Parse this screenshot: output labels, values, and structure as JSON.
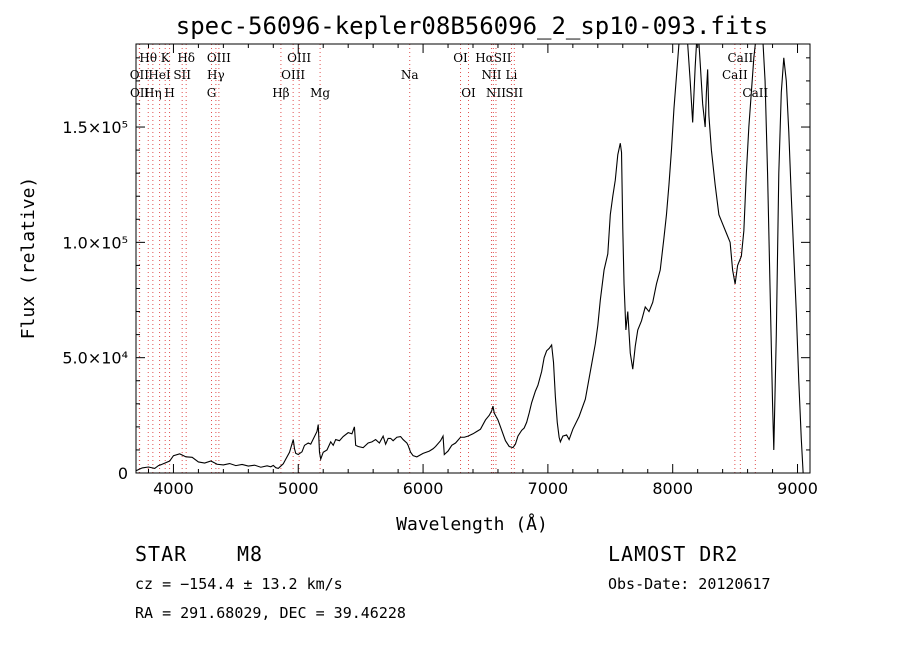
{
  "chart_data": {
    "type": "line",
    "title": "spec-56096-kepler08B56096_2_sp10-093.fits",
    "xlabel": "Wavelength (Å)",
    "ylabel": "Flux (relative)",
    "xlim": [
      3700,
      9100
    ],
    "ylim": [
      0,
      186000
    ],
    "x_ticks": [
      {
        "value": 4000,
        "label": "4000"
      },
      {
        "value": 5000,
        "label": "5000"
      },
      {
        "value": 6000,
        "label": "6000"
      },
      {
        "value": 7000,
        "label": "7000"
      },
      {
        "value": 8000,
        "label": "8000"
      },
      {
        "value": 9000,
        "label": "9000"
      }
    ],
    "y_ticks": [
      {
        "value": 0,
        "label": "0"
      },
      {
        "value": 50000,
        "label": "5.0×10⁴"
      },
      {
        "value": 100000,
        "label": "1.0×10⁵"
      },
      {
        "value": 150000,
        "label": "1.5×10⁵"
      }
    ],
    "grid": false,
    "series": [
      {
        "points": [
          [
            3700,
            1000
          ],
          [
            3750,
            2200
          ],
          [
            3800,
            2600
          ],
          [
            3850,
            2000
          ],
          [
            3880,
            3200
          ],
          [
            3900,
            3600
          ],
          [
            3940,
            4500
          ],
          [
            3970,
            5200
          ],
          [
            4000,
            7500
          ],
          [
            4050,
            8300
          ],
          [
            4100,
            7000
          ],
          [
            4150,
            6800
          ],
          [
            4200,
            4800
          ],
          [
            4250,
            4300
          ],
          [
            4300,
            5200
          ],
          [
            4350,
            3800
          ],
          [
            4400,
            3500
          ],
          [
            4450,
            4100
          ],
          [
            4500,
            3200
          ],
          [
            4550,
            3700
          ],
          [
            4600,
            3000
          ],
          [
            4650,
            3400
          ],
          [
            4700,
            2500
          ],
          [
            4750,
            3100
          ],
          [
            4780,
            2700
          ],
          [
            4800,
            3300
          ],
          [
            4820,
            2300
          ],
          [
            4840,
            2000
          ],
          [
            4860,
            3000
          ],
          [
            4880,
            4000
          ],
          [
            4900,
            6000
          ],
          [
            4930,
            9000
          ],
          [
            4960,
            14500
          ],
          [
            4970,
            10500
          ],
          [
            4980,
            8500
          ],
          [
            5000,
            8000
          ],
          [
            5030,
            9200
          ],
          [
            5050,
            12000
          ],
          [
            5080,
            13000
          ],
          [
            5100,
            12500
          ],
          [
            5150,
            18000
          ],
          [
            5160,
            21000
          ],
          [
            5170,
            9000
          ],
          [
            5180,
            6000
          ],
          [
            5200,
            9000
          ],
          [
            5230,
            10000
          ],
          [
            5260,
            13500
          ],
          [
            5280,
            12000
          ],
          [
            5300,
            14500
          ],
          [
            5330,
            14000
          ],
          [
            5360,
            15800
          ],
          [
            5400,
            17500
          ],
          [
            5430,
            17000
          ],
          [
            5450,
            20000
          ],
          [
            5460,
            12000
          ],
          [
            5480,
            11500
          ],
          [
            5520,
            11000
          ],
          [
            5560,
            13000
          ],
          [
            5590,
            13500
          ],
          [
            5620,
            14500
          ],
          [
            5650,
            13000
          ],
          [
            5680,
            16000
          ],
          [
            5700,
            12500
          ],
          [
            5720,
            15000
          ],
          [
            5740,
            15000
          ],
          [
            5760,
            14000
          ],
          [
            5790,
            15500
          ],
          [
            5820,
            15800
          ],
          [
            5840,
            14500
          ],
          [
            5870,
            13000
          ],
          [
            5880,
            12000
          ],
          [
            5900,
            9000
          ],
          [
            5920,
            7500
          ],
          [
            5950,
            7000
          ],
          [
            6000,
            8500
          ],
          [
            6050,
            9500
          ],
          [
            6080,
            10500
          ],
          [
            6100,
            11500
          ],
          [
            6140,
            14000
          ],
          [
            6160,
            16000
          ],
          [
            6170,
            8000
          ],
          [
            6180,
            8500
          ],
          [
            6200,
            9500
          ],
          [
            6230,
            12000
          ],
          [
            6260,
            13000
          ],
          [
            6300,
            15500
          ],
          [
            6330,
            15500
          ],
          [
            6360,
            16000
          ],
          [
            6400,
            17000
          ],
          [
            6430,
            18000
          ],
          [
            6460,
            19000
          ],
          [
            6500,
            23000
          ],
          [
            6530,
            25000
          ],
          [
            6550,
            27000
          ],
          [
            6560,
            29000
          ],
          [
            6570,
            26000
          ],
          [
            6600,
            23000
          ],
          [
            6620,
            20000
          ],
          [
            6640,
            17000
          ],
          [
            6660,
            14000
          ],
          [
            6690,
            11500
          ],
          [
            6720,
            11000
          ],
          [
            6740,
            12500
          ],
          [
            6760,
            16000
          ],
          [
            6790,
            18500
          ],
          [
            6810,
            19500
          ],
          [
            6830,
            22000
          ],
          [
            6850,
            26000
          ],
          [
            6870,
            30500
          ],
          [
            6900,
            35500
          ],
          [
            6920,
            38000
          ],
          [
            6950,
            44000
          ],
          [
            6970,
            50000
          ],
          [
            6990,
            53000
          ],
          [
            7010,
            54000
          ],
          [
            7030,
            55500
          ],
          [
            7045,
            48000
          ],
          [
            7060,
            33000
          ],
          [
            7075,
            22000
          ],
          [
            7090,
            15500
          ],
          [
            7100,
            13500
          ],
          [
            7120,
            16000
          ],
          [
            7150,
            16500
          ],
          [
            7170,
            14500
          ],
          [
            7200,
            19000
          ],
          [
            7250,
            24500
          ],
          [
            7300,
            32000
          ],
          [
            7350,
            47000
          ],
          [
            7380,
            56000
          ],
          [
            7400,
            64000
          ],
          [
            7420,
            75000
          ],
          [
            7450,
            88000
          ],
          [
            7480,
            95000
          ],
          [
            7500,
            112000
          ],
          [
            7520,
            120000
          ],
          [
            7540,
            127000
          ],
          [
            7560,
            138000
          ],
          [
            7580,
            143000
          ],
          [
            7590,
            139000
          ],
          [
            7600,
            106000
          ],
          [
            7610,
            82000
          ],
          [
            7625,
            62000
          ],
          [
            7640,
            70000
          ],
          [
            7660,
            52000
          ],
          [
            7680,
            45000
          ],
          [
            7700,
            55000
          ],
          [
            7720,
            62000
          ],
          [
            7750,
            66000
          ],
          [
            7780,
            72000
          ],
          [
            7810,
            70000
          ],
          [
            7840,
            74000
          ],
          [
            7870,
            82000
          ],
          [
            7900,
            88000
          ],
          [
            7930,
            102000
          ],
          [
            7950,
            112000
          ],
          [
            7970,
            125000
          ],
          [
            7990,
            140000
          ],
          [
            8010,
            158000
          ],
          [
            8030,
            172000
          ],
          [
            8050,
            186000
          ],
          [
            8070,
            192000
          ],
          [
            8090,
            196000
          ],
          [
            8100,
            200000
          ],
          [
            8120,
            186000
          ],
          [
            8140,
            170000
          ],
          [
            8160,
            152000
          ],
          [
            8180,
            176000
          ],
          [
            8200,
            195000
          ],
          [
            8220,
            178000
          ],
          [
            8240,
            160000
          ],
          [
            8260,
            150000
          ],
          [
            8270,
            165000
          ],
          [
            8280,
            175000
          ],
          [
            8290,
            155000
          ],
          [
            8310,
            140000
          ],
          [
            8340,
            125000
          ],
          [
            8370,
            112000
          ],
          [
            8400,
            108000
          ],
          [
            8430,
            104000
          ],
          [
            8460,
            100000
          ],
          [
            8480,
            88000
          ],
          [
            8500,
            82000
          ],
          [
            8520,
            90000
          ],
          [
            8550,
            94000
          ],
          [
            8570,
            105000
          ],
          [
            8590,
            130000
          ],
          [
            8610,
            150000
          ],
          [
            8630,
            165000
          ],
          [
            8650,
            180000
          ],
          [
            8670,
            190000
          ],
          [
            8700,
            198000
          ],
          [
            8720,
            190000
          ],
          [
            8740,
            170000
          ],
          [
            8760,
            130000
          ],
          [
            8780,
            80000
          ],
          [
            8800,
            30000
          ],
          [
            8810,
            10000
          ],
          [
            8830,
            60000
          ],
          [
            8850,
            130000
          ],
          [
            8870,
            165000
          ],
          [
            8890,
            180000
          ],
          [
            8910,
            170000
          ],
          [
            8930,
            148000
          ],
          [
            8950,
            120000
          ],
          [
            8970,
            95000
          ],
          [
            8990,
            70000
          ],
          [
            9010,
            40000
          ],
          [
            9030,
            15000
          ],
          [
            9045,
            0
          ]
        ]
      }
    ],
    "line_markers": [
      {
        "label": "Hθ",
        "x": 3798,
        "row": 1
      },
      {
        "label": "K",
        "x": 3934,
        "row": 1
      },
      {
        "label": "Hδ",
        "x": 4102,
        "row": 1
      },
      {
        "label": "OIII",
        "x": 4364,
        "row": 1
      },
      {
        "label": "OIII",
        "x": 5007,
        "row": 1
      },
      {
        "label": "OI",
        "x": 6300,
        "row": 1
      },
      {
        "label": "HαSII",
        "x": 6563,
        "row": 1
      },
      {
        "label": "CaII",
        "x": 8542,
        "row": 1
      },
      {
        "label": "OII",
        "x": 3727,
        "row": 2
      },
      {
        "label": "HeI",
        "x": 3889,
        "row": 2
      },
      {
        "label": "SII",
        "x": 4070,
        "row": 2
      },
      {
        "label": "Hγ",
        "x": 4340,
        "row": 2
      },
      {
        "label": "OIII",
        "x": 4959,
        "row": 2
      },
      {
        "label": "Na",
        "x": 5893,
        "row": 2
      },
      {
        "label": "NII",
        "x": 6548,
        "row": 2
      },
      {
        "label": "Li",
        "x": 6708,
        "row": 2
      },
      {
        "label": "CaII",
        "x": 8498,
        "row": 2
      },
      {
        "label": "OII",
        "x": 3729,
        "row": 3
      },
      {
        "label": "Hη",
        "x": 3835,
        "row": 3
      },
      {
        "label": "H",
        "x": 3969,
        "row": 3
      },
      {
        "label": "G",
        "x": 4305,
        "row": 3
      },
      {
        "label": "Hβ",
        "x": 4861,
        "row": 3
      },
      {
        "label": "Mg",
        "x": 5175,
        "row": 3
      },
      {
        "label": "OI",
        "x": 6364,
        "row": 3
      },
      {
        "label": "NII",
        "x": 6584,
        "row": 3
      },
      {
        "label": "SII",
        "x": 6731,
        "row": 3
      },
      {
        "label": "CaII",
        "x": 8662,
        "row": 3
      }
    ]
  },
  "info": {
    "object_class": "STAR",
    "subclass": "M8",
    "survey": "LAMOST DR2",
    "redshift": "cz = −154.4 ± 13.2 km/s",
    "obs_date": "Obs-Date: 20120617",
    "coordinates": "RA = 291.68029, DEC =  39.46228"
  }
}
